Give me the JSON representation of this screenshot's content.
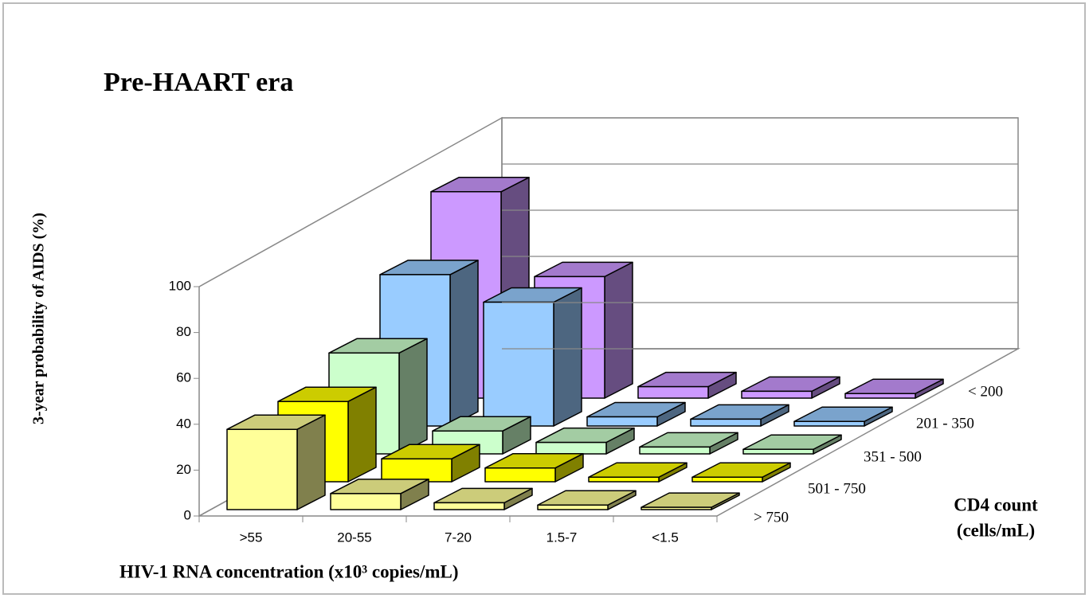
{
  "chart_data": {
    "type": "bar3d",
    "title": "Pre-HAART era",
    "y_axis_label": "3-year probability of AIDS (%)",
    "x_axis_label": "HIV-1 RNA concentration (x10³ copies/mL)",
    "z_axis_label": [
      "CD4 count",
      "(cells/mL)"
    ],
    "categories": [
      ">55",
      "20-55",
      "7-20",
      "1.5-7",
      "<1.5"
    ],
    "series": [
      {
        "name": "> 750",
        "color": "#ffff99",
        "values": [
          35,
          7,
          3,
          2,
          1
        ]
      },
      {
        "name": "501 - 750",
        "color": "#ffff00",
        "values": [
          35,
          10,
          6,
          2,
          2
        ]
      },
      {
        "name": "351 - 500",
        "color": "#ccffcc",
        "values": [
          44,
          10,
          5,
          3,
          2
        ]
      },
      {
        "name": "201 - 350",
        "color": "#99ccff",
        "values": [
          66,
          54,
          4,
          3,
          2
        ]
      },
      {
        "name": "< 200",
        "color": "#cc99ff",
        "values": [
          90,
          53,
          5,
          3,
          2
        ]
      }
    ],
    "ylim": [
      0,
      100
    ],
    "yticks": [
      0,
      20,
      40,
      60,
      80,
      100
    ],
    "grid": true
  }
}
